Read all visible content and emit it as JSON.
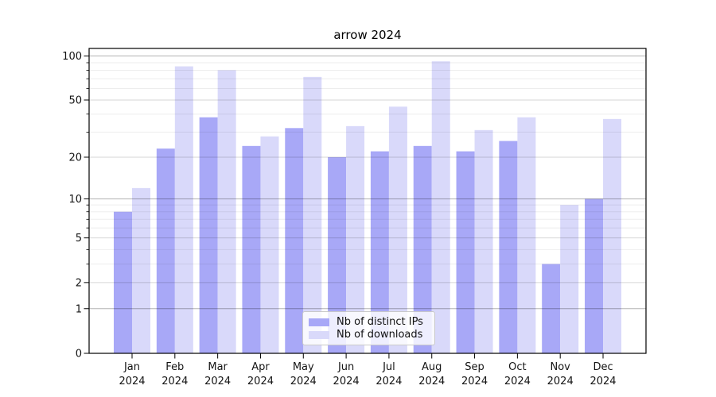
{
  "chart_data": {
    "type": "bar",
    "title": "arrow 2024",
    "categories": [
      "Jan",
      "Feb",
      "Mar",
      "Apr",
      "May",
      "Jun",
      "Jul",
      "Aug",
      "Sep",
      "Oct",
      "Nov",
      "Dec"
    ],
    "x_year_label": "2024",
    "series": [
      {
        "name": "Nb of distinct IPs",
        "color": "#a8a8f7",
        "values": [
          8,
          23,
          38,
          24,
          32,
          20,
          22,
          24,
          22,
          26,
          3,
          10
        ]
      },
      {
        "name": "Nb of downloads",
        "color": "#d9d9fa",
        "values": [
          12,
          85,
          80,
          28,
          72,
          33,
          45,
          92,
          31,
          38,
          9,
          37
        ]
      }
    ],
    "yscale": "log1p",
    "ylim": [
      0,
      112.6
    ],
    "yticks": [
      0,
      1,
      2,
      5,
      10,
      20,
      50,
      100
    ],
    "yticks_minor": [
      3,
      4,
      6,
      7,
      8,
      9,
      30,
      40,
      60,
      70,
      80,
      90
    ],
    "grid": true,
    "legend_position": "lower-center"
  }
}
